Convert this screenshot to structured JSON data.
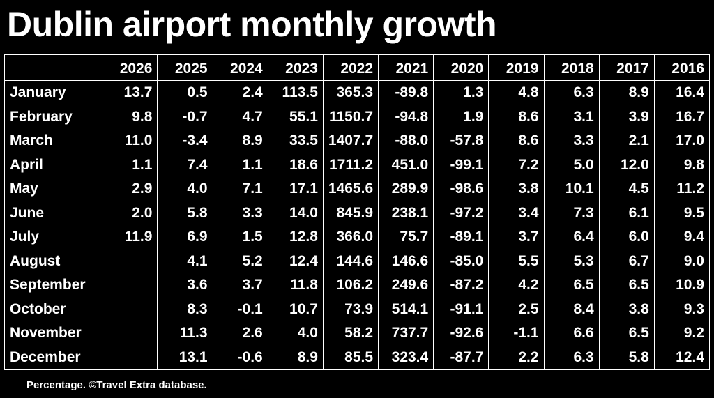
{
  "title": "Dublin airport monthly growth",
  "footnote": "Percentage. ©Travel Extra database.",
  "chart_data": {
    "type": "table",
    "title": "Dublin airport monthly growth",
    "columns": [
      "2026",
      "2025",
      "2024",
      "2023",
      "2022",
      "2021",
      "2020",
      "2019",
      "2018",
      "2017",
      "2016"
    ],
    "rows": [
      {
        "label": "January",
        "values": [
          "13.7",
          "0.5",
          "2.4",
          "113.5",
          "365.3",
          "-89.8",
          "1.3",
          "4.8",
          "6.3",
          "8.9",
          "16.4"
        ]
      },
      {
        "label": "February",
        "values": [
          "9.8",
          "-0.7",
          "4.7",
          "55.1",
          "1150.7",
          "-94.8",
          "1.9",
          "8.6",
          "3.1",
          "3.9",
          "16.7"
        ]
      },
      {
        "label": "March",
        "values": [
          "11.0",
          "-3.4",
          "8.9",
          "33.5",
          "1407.7",
          "-88.0",
          "-57.8",
          "8.6",
          "3.3",
          "2.1",
          "17.0"
        ]
      },
      {
        "label": "April",
        "values": [
          "1.1",
          "7.4",
          "1.1",
          "18.6",
          "1711.2",
          "451.0",
          "-99.1",
          "7.2",
          "5.0",
          "12.0",
          "9.8"
        ]
      },
      {
        "label": "May",
        "values": [
          "2.9",
          "4.0",
          "7.1",
          "17.1",
          "1465.6",
          "289.9",
          "-98.6",
          "3.8",
          "10.1",
          "4.5",
          "11.2"
        ]
      },
      {
        "label": "June",
        "values": [
          "2.0",
          "5.8",
          "3.3",
          "14.0",
          "845.9",
          "238.1",
          "-97.2",
          "3.4",
          "7.3",
          "6.1",
          "9.5"
        ]
      },
      {
        "label": "July",
        "values": [
          "11.9",
          "6.9",
          "1.5",
          "12.8",
          "366.0",
          "75.7",
          "-89.1",
          "3.7",
          "6.4",
          "6.0",
          "9.4"
        ]
      },
      {
        "label": "August",
        "values": [
          "",
          "4.1",
          "5.2",
          "12.4",
          "144.6",
          "146.6",
          "-85.0",
          "5.5",
          "5.3",
          "6.7",
          "9.0"
        ]
      },
      {
        "label": "September",
        "values": [
          "",
          "3.6",
          "3.7",
          "11.8",
          "106.2",
          "249.6",
          "-87.2",
          "4.2",
          "6.5",
          "6.5",
          "10.9"
        ]
      },
      {
        "label": "October",
        "values": [
          "",
          "8.3",
          "-0.1",
          "10.7",
          "73.9",
          "514.1",
          "-91.1",
          "2.5",
          "8.4",
          "3.8",
          "9.3"
        ]
      },
      {
        "label": "November",
        "values": [
          "",
          "11.3",
          "2.6",
          "4.0",
          "58.2",
          "737.7",
          "-92.6",
          "-1.1",
          "6.6",
          "6.5",
          "9.2"
        ]
      },
      {
        "label": "December",
        "values": [
          "",
          "13.1",
          "-0.6",
          "8.9",
          "85.5",
          "323.4",
          "-87.7",
          "2.2",
          "6.3",
          "5.8",
          "12.4"
        ]
      }
    ]
  },
  "colors": {
    "background": "#000000",
    "text": "#ffffff",
    "grid": "#ffffff"
  }
}
